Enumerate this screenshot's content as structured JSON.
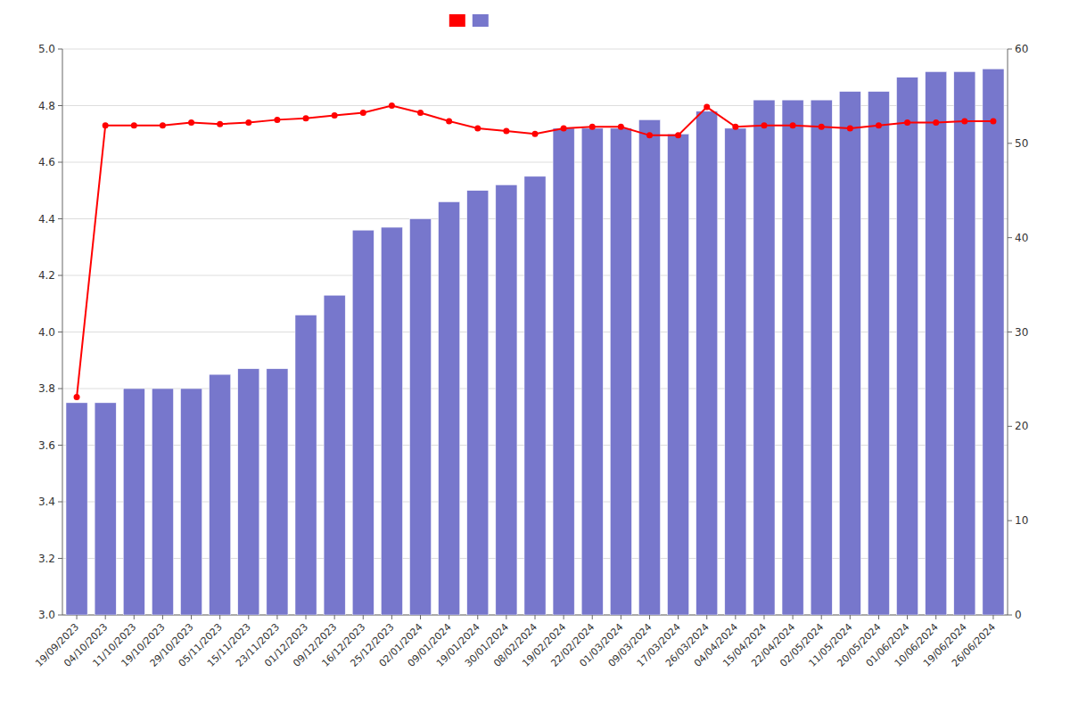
{
  "chart_data": {
    "type": "bar",
    "categories": [
      "19/09/2023",
      "04/10/2023",
      "11/10/2023",
      "19/10/2023",
      "29/10/2023",
      "05/11/2023",
      "15/11/2023",
      "23/11/2023",
      "01/12/2023",
      "09/12/2023",
      "16/12/2023",
      "25/12/2023",
      "02/01/2024",
      "09/01/2024",
      "19/01/2024",
      "30/01/2024",
      "08/02/2024",
      "19/02/2024",
      "22/02/2024",
      "01/03/2024",
      "09/03/2024",
      "17/03/2024",
      "26/03/2024",
      "04/04/2024",
      "15/04/2024",
      "22/04/2024",
      "02/05/2024",
      "11/05/2024",
      "20/05/2024",
      "01/06/2024",
      "10/06/2024",
      "19/06/2024",
      "26/06/2024"
    ],
    "series": [
      {
        "type": "bar",
        "color": "#7777cc",
        "values": [
          3.75,
          3.75,
          3.8,
          3.8,
          3.8,
          3.85,
          3.87,
          3.87,
          4.06,
          4.13,
          4.36,
          4.37,
          4.4,
          4.46,
          4.5,
          4.52,
          4.55,
          4.72,
          4.72,
          4.72,
          4.75,
          4.7,
          4.78,
          4.72,
          4.82,
          4.82,
          4.82,
          4.85,
          4.85,
          4.9,
          4.92,
          4.92,
          4.93
        ]
      },
      {
        "type": "line",
        "color": "#ff0000",
        "marker": "circle",
        "values": [
          3.77,
          4.73,
          4.73,
          4.73,
          4.74,
          4.735,
          4.74,
          4.75,
          4.755,
          4.765,
          4.775,
          4.8,
          4.775,
          4.745,
          4.72,
          4.71,
          4.7,
          4.72,
          4.725,
          4.725,
          4.695,
          4.695,
          4.795,
          4.725,
          4.73,
          4.73,
          4.725,
          4.72,
          4.73,
          4.74,
          4.74,
          4.745,
          4.745
        ]
      }
    ],
    "ylim": [
      3.0,
      5.0
    ],
    "yticks": [
      {
        "value": 3.0,
        "label": "3.0"
      },
      3.2,
      3.4,
      3.6,
      3.8,
      {
        "value": 4.0,
        "label": "4.0"
      },
      4.2,
      4.4,
      4.6,
      4.8,
      {
        "value": 5.0,
        "label": "5.0"
      }
    ],
    "y2lim": [
      0,
      60
    ],
    "y2ticks": [
      0,
      10,
      20,
      30,
      40,
      50,
      60
    ],
    "grid": true,
    "legend": "top"
  }
}
